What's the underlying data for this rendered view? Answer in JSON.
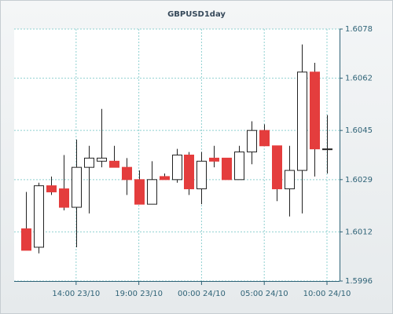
{
  "chart_data": {
    "type": "candlestick",
    "title": "GBPUSD1day",
    "x": [
      null,
      null,
      null,
      null,
      "14:00 23/10",
      null,
      null,
      null,
      null,
      "19:00 23/10",
      null,
      null,
      null,
      null,
      "00:00 24/10",
      null,
      null,
      null,
      null,
      "05:00 24/10",
      null,
      null,
      null,
      null,
      "10:00 24/10"
    ],
    "open": [
      1.6013,
      1.6007,
      1.6027,
      1.6026,
      1.602,
      1.6033,
      1.6035,
      1.6035,
      1.6033,
      1.6029,
      1.6021,
      1.603,
      1.6029,
      1.6037,
      1.6026,
      1.6036,
      1.6036,
      1.6029,
      1.6038,
      1.6045,
      1.604,
      1.6026,
      1.6032,
      1.6064,
      1.6039
    ],
    "high": [
      1.6025,
      1.6028,
      1.603,
      1.6037,
      1.6042,
      1.604,
      1.6052,
      1.604,
      1.6036,
      1.6032,
      1.6035,
      1.6031,
      1.6039,
      1.6038,
      1.6038,
      1.604,
      1.6036,
      1.604,
      1.6048,
      1.6047,
      1.604,
      1.604,
      1.6073,
      1.6067,
      1.605
    ],
    "low": [
      1.6006,
      1.6005,
      1.6024,
      1.6019,
      1.6007,
      1.6018,
      1.6033,
      1.6033,
      1.6024,
      1.6021,
      1.6021,
      1.6029,
      1.6028,
      1.6024,
      1.6021,
      1.6033,
      1.6029,
      1.6029,
      1.6034,
      1.604,
      1.6022,
      1.6017,
      1.6018,
      1.603,
      1.6031
    ],
    "close": [
      1.6006,
      1.6027,
      1.6025,
      1.602,
      1.6033,
      1.6036,
      1.6036,
      1.6033,
      1.6029,
      1.6021,
      1.6029,
      1.6029,
      1.6037,
      1.6026,
      1.6035,
      1.6035,
      1.6029,
      1.6038,
      1.6045,
      1.604,
      1.6026,
      1.6032,
      1.6064,
      1.6039,
      1.6039
    ],
    "up_color": "#ffffff",
    "down_color": "#e43d3d",
    "ylim": [
      1.5996,
      1.6078
    ],
    "yticks": [
      1.5996,
      1.6012,
      1.6029,
      1.6045,
      1.6062,
      1.6078
    ],
    "grid": true
  }
}
